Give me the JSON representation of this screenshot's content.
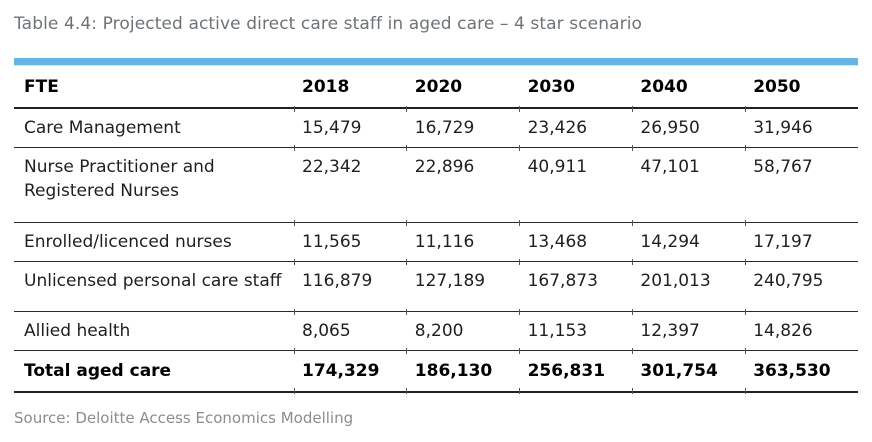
{
  "title": "Table 4.4: Projected active direct care staff in aged care – 4 star scenario",
  "source_note": "Source: Deloitte Access Economics Modelling",
  "colors": {
    "accent_bar": "#64b5e3",
    "title_text": "#6d7377",
    "source_text": "#8a8d90",
    "body_text": "#1f1f1f",
    "rule_lines": "#2a2a2a"
  },
  "chart_data": {
    "type": "table",
    "title": "Table 4.4: Projected active direct care staff in aged care – 4 star scenario",
    "columns": [
      "FTE",
      "2018",
      "2020",
      "2030",
      "2040",
      "2050"
    ],
    "rows": [
      {
        "label": "Care Management",
        "values": [
          "15,479",
          "16,729",
          "23,426",
          "26,950",
          "31,946"
        ],
        "bold": false
      },
      {
        "label": "Nurse Practitioner and Registered Nurses",
        "values": [
          "22,342",
          "22,896",
          "40,911",
          "47,101",
          "58,767"
        ],
        "bold": false
      },
      {
        "label": "Enrolled/licenced nurses",
        "values": [
          "11,565",
          "11,116",
          "13,468",
          "14,294",
          "17,197"
        ],
        "bold": false
      },
      {
        "label": "Unlicensed personal care staff",
        "values": [
          "116,879",
          "127,189",
          "167,873",
          "201,013",
          "240,795"
        ],
        "bold": false
      },
      {
        "label": "Allied health",
        "values": [
          "8,065",
          "8,200",
          "11,153",
          "12,397",
          "14,826"
        ],
        "bold": false
      },
      {
        "label": "Total aged care",
        "values": [
          "174,329",
          "186,130",
          "256,831",
          "301,754",
          "363,530"
        ],
        "bold": true
      }
    ],
    "source": "Source: Deloitte Access Economics Modelling"
  }
}
